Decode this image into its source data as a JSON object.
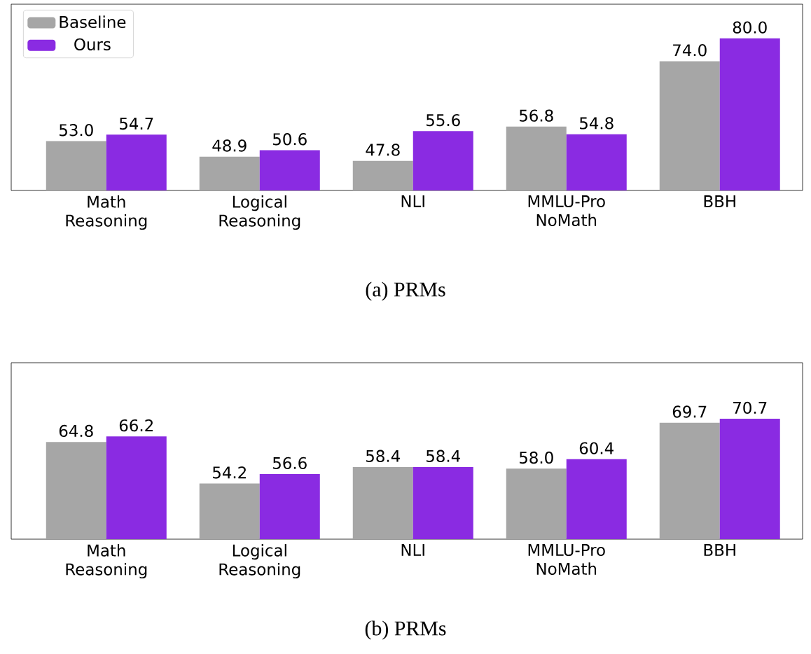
{
  "chart_data": [
    {
      "type": "bar",
      "title": "(a) PRMs",
      "categories": [
        "Math Reasoning",
        "Logical Reasoning",
        "NLI",
        "MMLU-Pro NoMath",
        "BBH"
      ],
      "series": [
        {
          "name": "Baseline",
          "color": "#a6a6a6",
          "values": [
            53.0,
            48.9,
            47.8,
            56.8,
            74.0
          ],
          "value_labels": [
            "53.0",
            "48.9",
            "47.8",
            "56.8",
            "74.0"
          ]
        },
        {
          "name": "Ours",
          "color": "#8a2be2",
          "values": [
            54.7,
            50.6,
            55.6,
            54.8,
            80.0
          ],
          "value_labels": [
            "54.7",
            "50.6",
            "55.6",
            "54.8",
            "80.0"
          ]
        }
      ],
      "ylim": [
        40,
        89
      ],
      "legend": "top left",
      "tick_labels": "x"
    },
    {
      "type": "bar",
      "title": "(b) PRMs",
      "categories": [
        "Math Reasoning",
        "Logical Reasoning",
        "NLI",
        "MMLU-Pro NoMath",
        "BBH"
      ],
      "series": [
        {
          "color": "#a6a6a6",
          "values": [
            64.8,
            54.2,
            58.4,
            58.0,
            69.7
          ],
          "value_labels": [
            "64.8",
            "54.2",
            "58.4",
            "58.0",
            "69.7"
          ]
        },
        {
          "color": "#8a2be2",
          "values": [
            66.2,
            56.6,
            58.4,
            60.4,
            70.7
          ],
          "value_labels": [
            "66.2",
            "56.6",
            "58.4",
            "60.4",
            "70.7"
          ]
        }
      ],
      "ylim": [
        40,
        85
      ],
      "tick_labels": "x"
    }
  ]
}
